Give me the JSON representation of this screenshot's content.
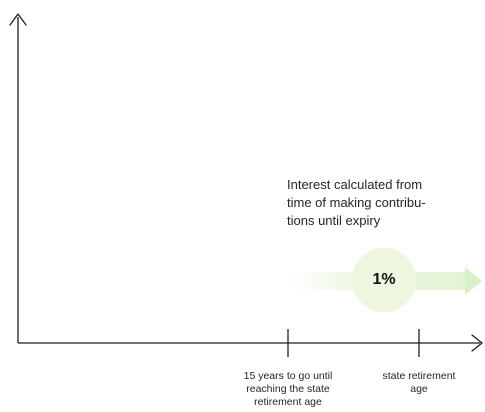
{
  "annotation": {
    "lines": [
      "Interest calculated from",
      "time of making contribu-",
      "tions until expiry"
    ]
  },
  "rate_badge": {
    "value": "1%"
  },
  "x_axis_ticks": [
    {
      "lines": [
        "15 years to go until",
        "reaching the state",
        "retirement age"
      ]
    },
    {
      "lines": [
        "state retirement",
        "age"
      ]
    }
  ],
  "colors": {
    "axis": "#1f1f1f",
    "badge_fill": "#edf6df",
    "arrow_fill": "#e7f5d8",
    "arrow_head": "#c9ebb4"
  }
}
